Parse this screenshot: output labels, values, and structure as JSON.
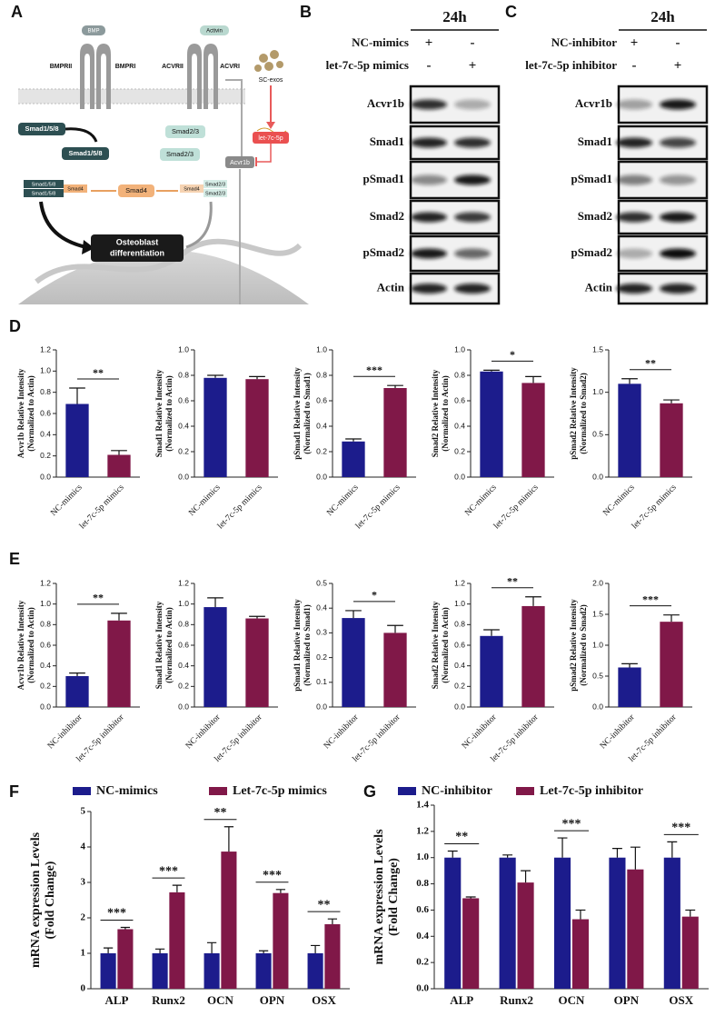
{
  "panel_labels": [
    "A",
    "B",
    "C",
    "D",
    "E",
    "F",
    "G"
  ],
  "diagram": {
    "ligands": [
      "BMP",
      "Activin"
    ],
    "receptors": [
      "BMPRII",
      "BMPRI",
      "ACVRII",
      "ACVRI"
    ],
    "exosome": "SC-exos",
    "mirna": "let-7c-5p",
    "target": "Acvr1b",
    "smads": [
      "Smad1/5/8",
      "Smad1/5/8",
      "Smad2/3",
      "Smad2/3",
      "Smad4"
    ],
    "complex_left": [
      "Smad1/5/8",
      "Smad1/5/8",
      "Smad4"
    ],
    "complex_right": [
      "Smad4",
      "Smad2/3",
      "Smad2/3"
    ],
    "outcome": [
      "Osteoblast",
      "differentiation"
    ]
  },
  "blots": [
    {
      "time": "24h",
      "conditions": [
        {
          "name": "NC-mimics",
          "lanes": [
            "+",
            "-"
          ]
        },
        {
          "name": "let-7c-5p mimics",
          "lanes": [
            "-",
            "+"
          ]
        }
      ],
      "proteins": [
        "Acvr1b",
        "Smad1",
        "pSmad1",
        "Smad2",
        "pSmad2",
        "Actin"
      ]
    },
    {
      "time": "24h",
      "conditions": [
        {
          "name": "NC-inhibitor",
          "lanes": [
            "+",
            "-"
          ]
        },
        {
          "name": "let-7c-5p inhibitor",
          "lanes": [
            "-",
            "+"
          ]
        }
      ],
      "proteins": [
        "Acvr1b",
        "Smad1",
        "pSmad1",
        "Smad2",
        "pSmad2",
        "Actin"
      ]
    }
  ],
  "chart_data": [
    {
      "type": "bar",
      "ylabel": [
        "Acvr1b Relative Intensity",
        "(Normalized to Actin)"
      ],
      "categories": [
        "NC-mimics",
        "let-7c-5p mimics"
      ],
      "values": [
        0.69,
        0.21
      ],
      "errors": [
        0.15,
        0.04
      ],
      "colors": [
        "#1c1c8c",
        "#801848"
      ],
      "ylim": [
        0,
        1.2
      ],
      "yticks": [
        {
          "value": 0,
          "label": "0.0"
        },
        0.2,
        0.4,
        0.6,
        0.8,
        {
          "value": 1,
          "label": "1.0"
        },
        1.2
      ],
      "significance": "**"
    },
    {
      "type": "bar",
      "ylabel": [
        "Smad1 Relative Intensity",
        "(Normalized to Actin)"
      ],
      "categories": [
        "NC-mimics",
        "let-7c-5p mimics"
      ],
      "values": [
        0.78,
        0.77
      ],
      "errors": [
        0.02,
        0.02
      ],
      "colors": [
        "#1c1c8c",
        "#801848"
      ],
      "ylim": [
        0,
        1.0
      ],
      "yticks": [
        {
          "value": 0,
          "label": "0.0"
        },
        0.2,
        0.4,
        0.6,
        0.8,
        {
          "value": 1,
          "label": "1.0"
        }
      ]
    },
    {
      "type": "bar",
      "ylabel": [
        "pSmad1 Relative Intensity",
        "(Normalized to Smad1)"
      ],
      "categories": [
        "NC-mimics",
        "let-7c-5p mimics"
      ],
      "values": [
        0.28,
        0.7
      ],
      "errors": [
        0.02,
        0.02
      ],
      "colors": [
        "#1c1c8c",
        "#801848"
      ],
      "ylim": [
        0,
        1.0
      ],
      "yticks": [
        {
          "value": 0,
          "label": "0.0"
        },
        0.2,
        0.4,
        0.6,
        0.8,
        {
          "value": 1,
          "label": "1.0"
        }
      ],
      "significance": "***"
    },
    {
      "type": "bar",
      "ylabel": [
        "Smad2 Relative Intensity",
        "(Normalized to Actin)"
      ],
      "categories": [
        "NC-mimics",
        "let-7c-5p mimics"
      ],
      "values": [
        0.83,
        0.74
      ],
      "errors": [
        0.01,
        0.05
      ],
      "colors": [
        "#1c1c8c",
        "#801848"
      ],
      "ylim": [
        0,
        1.0
      ],
      "yticks": [
        {
          "value": 0,
          "label": "0.0"
        },
        0.2,
        0.4,
        0.6,
        0.8,
        {
          "value": 1,
          "label": "1.0"
        }
      ],
      "significance": "*"
    },
    {
      "type": "bar",
      "ylabel": [
        "pSmad2 Relative Intensity",
        "(Normalized to Smad2)"
      ],
      "categories": [
        "NC-mimics",
        "let-7c-5p mimics"
      ],
      "values": [
        1.1,
        0.87
      ],
      "errors": [
        0.06,
        0.04
      ],
      "colors": [
        "#1c1c8c",
        "#801848"
      ],
      "ylim": [
        0,
        1.5
      ],
      "yticks": [
        {
          "value": 0,
          "label": "0.0"
        },
        0.5,
        {
          "value": 1,
          "label": "1.0"
        },
        1.5
      ],
      "significance": "**"
    },
    {
      "type": "bar",
      "ylabel": [
        "Acvr1b Relative Intensity",
        "(Normalized to Actin)"
      ],
      "categories": [
        "NC-inhibitor",
        "let-7c-5p inhibitor"
      ],
      "values": [
        0.3,
        0.84
      ],
      "errors": [
        0.03,
        0.07
      ],
      "colors": [
        "#1c1c8c",
        "#801848"
      ],
      "ylim": [
        0,
        1.2
      ],
      "yticks": [
        {
          "value": 0,
          "label": "0.0"
        },
        0.2,
        0.4,
        0.6,
        0.8,
        {
          "value": 1,
          "label": "1.0"
        },
        1.2
      ],
      "significance": "**"
    },
    {
      "type": "bar",
      "ylabel": [
        "Smad1 Relative Intensity",
        "(Normalized to Actin)"
      ],
      "categories": [
        "NC-inhibitor",
        "let-7c-5p inhibitor"
      ],
      "values": [
        0.97,
        0.86
      ],
      "errors": [
        0.09,
        0.02
      ],
      "colors": [
        "#1c1c8c",
        "#801848"
      ],
      "ylim": [
        0,
        1.2
      ],
      "yticks": [
        {
          "value": 0,
          "label": "0.0"
        },
        0.2,
        0.4,
        0.6,
        0.8,
        {
          "value": 1,
          "label": "1.0"
        },
        1.2
      ]
    },
    {
      "type": "bar",
      "ylabel": [
        "pSmad1 Relative Intensity",
        "(Normalized to Smad1)"
      ],
      "categories": [
        "NC-inhibitor",
        "let-7c-5p inhibitor"
      ],
      "values": [
        0.36,
        0.3
      ],
      "errors": [
        0.03,
        0.03
      ],
      "colors": [
        "#1c1c8c",
        "#801848"
      ],
      "ylim": [
        0,
        0.5
      ],
      "yticks": [
        {
          "value": 0,
          "label": "0.0"
        },
        0.1,
        0.2,
        0.3,
        0.4,
        0.5
      ],
      "significance": "*"
    },
    {
      "type": "bar",
      "ylabel": [
        "Smad2 Relative Intensity",
        "(Normalized to Actin)"
      ],
      "categories": [
        "NC-inhibitor",
        "let-7c-5p inhibitor"
      ],
      "values": [
        0.69,
        0.98
      ],
      "errors": [
        0.06,
        0.09
      ],
      "colors": [
        "#1c1c8c",
        "#801848"
      ],
      "ylim": [
        0,
        1.2
      ],
      "yticks": [
        {
          "value": 0,
          "label": "0.0"
        },
        0.2,
        0.4,
        0.6,
        0.8,
        {
          "value": 1,
          "label": "1.0"
        },
        1.2
      ],
      "significance": "**"
    },
    {
      "type": "bar",
      "ylabel": [
        "pSmad2 Relative Intensity",
        "(Normalized to Smad2)"
      ],
      "categories": [
        "NC-inhibitor",
        "let-7c-5p inhibitor"
      ],
      "values": [
        0.64,
        1.38
      ],
      "errors": [
        0.06,
        0.11
      ],
      "colors": [
        "#1c1c8c",
        "#801848"
      ],
      "ylim": [
        0,
        2.0
      ],
      "yticks": [
        {
          "value": 0,
          "label": "0.0"
        },
        0.5,
        {
          "value": 1,
          "label": "1.0"
        },
        1.5,
        {
          "value": 2,
          "label": "2.0"
        }
      ],
      "significance": "***"
    },
    {
      "type": "grouped_bar",
      "ylabel": [
        "mRNA expression Levels",
        "(Fold Change)"
      ],
      "categories": [
        "ALP",
        "Runx2",
        "OCN",
        "OPN",
        "OSX"
      ],
      "series": [
        {
          "name": "NC-mimics",
          "color": "#1c1c8c",
          "values": [
            1,
            1,
            1,
            1,
            1
          ],
          "errors": [
            0.15,
            0.12,
            0.3,
            0.07,
            0.22
          ]
        },
        {
          "name": "Let-7c-5p mimics",
          "color": "#801848",
          "values": [
            1.68,
            2.72,
            3.87,
            2.7,
            1.82
          ],
          "errors": [
            0.05,
            0.2,
            0.7,
            0.1,
            0.15
          ]
        }
      ],
      "ylim": [
        0,
        5
      ],
      "yticks": [
        0,
        1,
        2,
        3,
        4,
        5
      ],
      "significance": [
        "***",
        "***",
        "**",
        "***",
        "**"
      ],
      "legend": "top"
    },
    {
      "type": "grouped_bar",
      "ylabel": [
        "mRNA expression Levels",
        "(Fold Change)"
      ],
      "categories": [
        "ALP",
        "Runx2",
        "OCN",
        "OPN",
        "OSX"
      ],
      "series": [
        {
          "name": "NC-inhibitor",
          "color": "#1c1c8c",
          "values": [
            1,
            1,
            1,
            1,
            1
          ],
          "errors": [
            0.05,
            0.02,
            0.15,
            0.07,
            0.12
          ]
        },
        {
          "name": "Let-7c-5p inhibitor",
          "color": "#801848",
          "values": [
            0.69,
            0.81,
            0.53,
            0.91,
            0.55
          ],
          "errors": [
            0.01,
            0.09,
            0.07,
            0.17,
            0.05
          ]
        }
      ],
      "ylim": [
        0,
        1.4
      ],
      "yticks": [
        {
          "value": 0,
          "label": "0.0"
        },
        0.2,
        0.4,
        0.6,
        0.8,
        {
          "value": 1,
          "label": "1.0"
        },
        1.2,
        1.4
      ],
      "significance": [
        "**",
        null,
        "***",
        null,
        "***"
      ],
      "legend": "top"
    }
  ]
}
